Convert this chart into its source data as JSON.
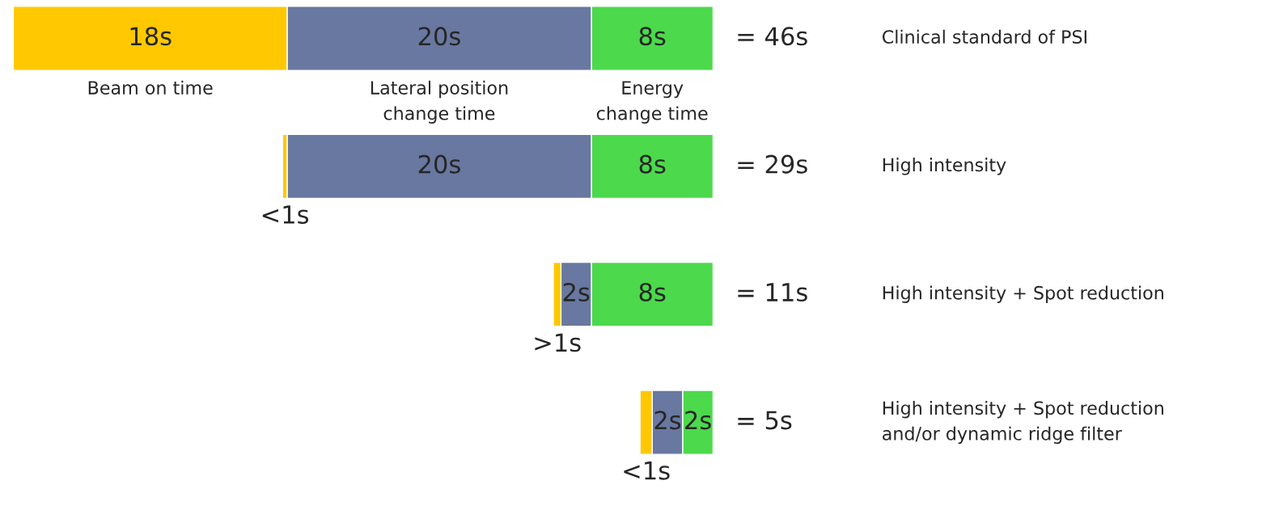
{
  "chart_data": {
    "type": "bar",
    "orientation": "horizontal",
    "stacked": true,
    "categories": [
      "Clinical standard of PSI",
      "High intensity",
      "High intensity + Spot reduction",
      "High intensity + Spot reduction\nand/or dynamic ridge filter"
    ],
    "series": [
      {
        "name": "Energy\nchange time",
        "color": "#4cd94c",
        "values": [
          8,
          8,
          8,
          2
        ],
        "value_labels": [
          "8s",
          "8s",
          "8s",
          "2s"
        ]
      },
      {
        "name": "Lateral position\nchange time",
        "color": "#6878a0",
        "values": [
          20,
          20,
          2,
          2
        ],
        "value_labels": [
          "20s",
          "20s",
          "2s",
          "2s"
        ]
      },
      {
        "name": "Beam on time",
        "color": "#ffc800",
        "values": [
          18,
          0.3,
          0.5,
          0.8
        ],
        "value_labels": [
          "18s",
          "<1s",
          ">1s",
          "<1s"
        ]
      }
    ],
    "totals": [
      "= 46s",
      "= 29s",
      "= 11s",
      "= 5s"
    ]
  }
}
